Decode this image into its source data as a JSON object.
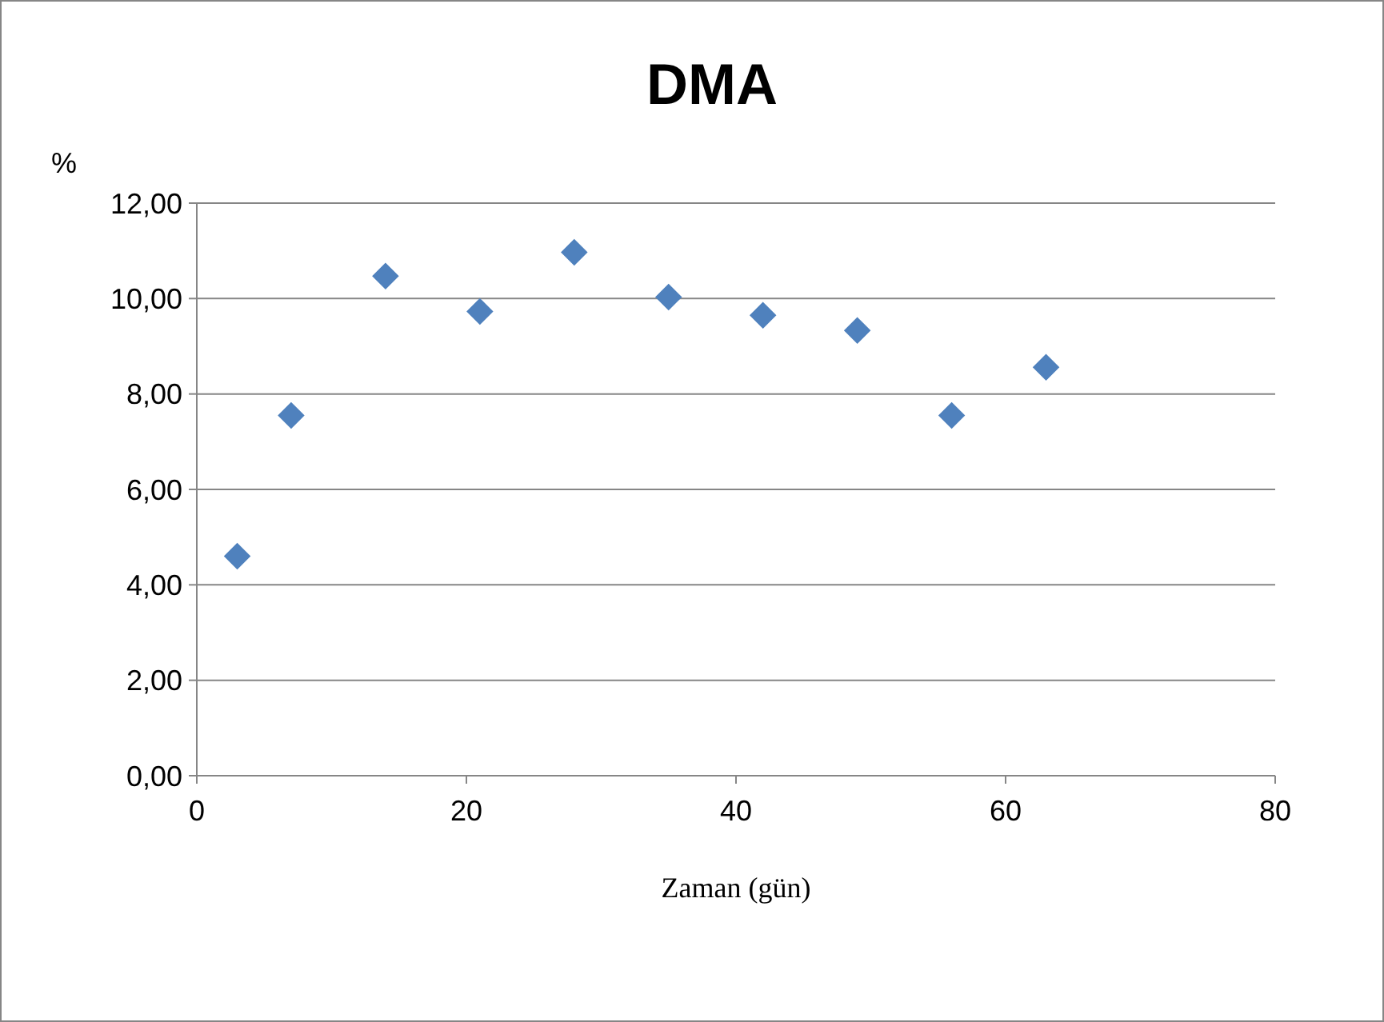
{
  "chart_data": {
    "type": "scatter",
    "title": "DMA",
    "xlabel": "Zaman (gün)",
    "ylabel": "%",
    "x": [
      3,
      7,
      14,
      21,
      28,
      35,
      42,
      49,
      56,
      63
    ],
    "series": [
      {
        "color": "#4f81bd",
        "values": [
          4.6,
          7.55,
          10.47,
          9.73,
          10.97,
          10.03,
          9.65,
          9.33,
          7.55,
          8.56
        ]
      }
    ],
    "xlim": [
      0,
      80
    ],
    "xticks": [
      0,
      20,
      40,
      60,
      80
    ],
    "ylim": [
      0,
      12
    ],
    "yticks": [
      {
        "value": 0,
        "label": "0,00"
      },
      {
        "value": 2,
        "label": "2,00"
      },
      {
        "value": 4,
        "label": "4,00"
      },
      {
        "value": 6,
        "label": "6,00"
      },
      {
        "value": 8,
        "label": "8,00"
      },
      {
        "value": 10,
        "label": "10,00"
      },
      {
        "value": 12,
        "label": "12,00"
      }
    ],
    "grid": "y",
    "marker": "diamond"
  }
}
